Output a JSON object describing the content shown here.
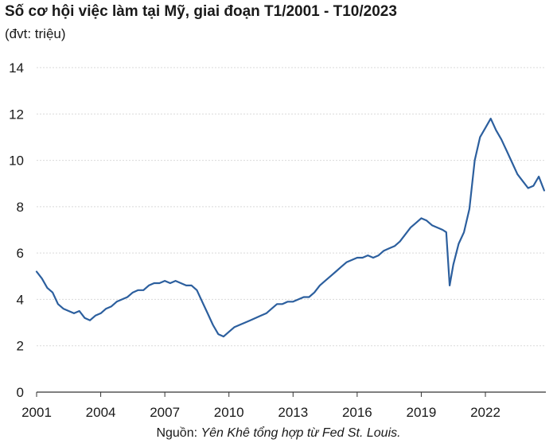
{
  "title": "Số cơ hội việc làm tại Mỹ, giai đoạn T1/2001 - T10/2023",
  "subtitle": "(đvt: triệu)",
  "source_prefix": "Nguồn: ",
  "source_text": "Yên Khê tổng hợp từ Fed St. Louis.",
  "colors": {
    "line": "#2c5f9e",
    "grid": "#d9d9d9",
    "axis": "#333333"
  },
  "chart_data": {
    "type": "line",
    "title": "Số cơ hội việc làm tại Mỹ, giai đoạn T1/2001 - T10/2023",
    "ylabel": "(đvt: triệu)",
    "xlim": [
      2001.0,
      2024.83
    ],
    "ylim": [
      0,
      14
    ],
    "grid": true,
    "x_ticks": [
      "2001",
      "2004",
      "2007",
      "2010",
      "2013",
      "2016",
      "2019",
      "2022"
    ],
    "y_ticks": [
      "0",
      "2",
      "4",
      "6",
      "8",
      "10",
      "12",
      "14"
    ],
    "x": [
      2001.0,
      2001.25,
      2001.5,
      2001.75,
      2002.0,
      2002.25,
      2002.5,
      2002.75,
      2003.0,
      2003.25,
      2003.5,
      2003.75,
      2004.0,
      2004.25,
      2004.5,
      2004.75,
      2005.0,
      2005.25,
      2005.5,
      2005.75,
      2006.0,
      2006.25,
      2006.5,
      2006.75,
      2007.0,
      2007.25,
      2007.5,
      2007.75,
      2008.0,
      2008.25,
      2008.5,
      2008.75,
      2009.0,
      2009.25,
      2009.5,
      2009.75,
      2010.0,
      2010.25,
      2010.5,
      2010.75,
      2011.0,
      2011.25,
      2011.5,
      2011.75,
      2012.0,
      2012.25,
      2012.5,
      2012.75,
      2013.0,
      2013.25,
      2013.5,
      2013.75,
      2014.0,
      2014.25,
      2014.5,
      2014.75,
      2015.0,
      2015.25,
      2015.5,
      2015.75,
      2016.0,
      2016.25,
      2016.5,
      2016.75,
      2017.0,
      2017.25,
      2017.5,
      2017.75,
      2018.0,
      2018.25,
      2018.5,
      2018.75,
      2019.0,
      2019.25,
      2019.5,
      2019.75,
      2020.0,
      2020.17,
      2020.33,
      2020.5,
      2020.75,
      2021.0,
      2021.25,
      2021.5,
      2021.75,
      2022.0,
      2022.25,
      2022.5,
      2022.75,
      2023.0,
      2023.25,
      2023.5,
      2023.75,
      2024.0,
      2024.25,
      2024.5,
      2024.75
    ],
    "series": [
      {
        "values": [
          5.2,
          4.9,
          4.5,
          4.3,
          3.8,
          3.6,
          3.5,
          3.4,
          3.5,
          3.2,
          3.1,
          3.3,
          3.4,
          3.6,
          3.7,
          3.9,
          4.0,
          4.1,
          4.3,
          4.4,
          4.4,
          4.6,
          4.7,
          4.7,
          4.8,
          4.7,
          4.8,
          4.7,
          4.6,
          4.6,
          4.4,
          3.9,
          3.4,
          2.9,
          2.5,
          2.4,
          2.6,
          2.8,
          2.9,
          3.0,
          3.1,
          3.2,
          3.3,
          3.4,
          3.6,
          3.8,
          3.8,
          3.9,
          3.9,
          4.0,
          4.1,
          4.1,
          4.3,
          4.6,
          4.8,
          5.0,
          5.2,
          5.4,
          5.6,
          5.7,
          5.8,
          5.8,
          5.9,
          5.8,
          5.9,
          6.1,
          6.2,
          6.3,
          6.5,
          6.8,
          7.1,
          7.3,
          7.5,
          7.4,
          7.2,
          7.1,
          7.0,
          6.9,
          4.6,
          5.5,
          6.4,
          6.9,
          7.9,
          10.0,
          11.0,
          11.4,
          11.8,
          11.3,
          10.9,
          10.4,
          9.9,
          9.4,
          9.1,
          8.8,
          8.9,
          9.3,
          8.7
        ]
      }
    ]
  }
}
